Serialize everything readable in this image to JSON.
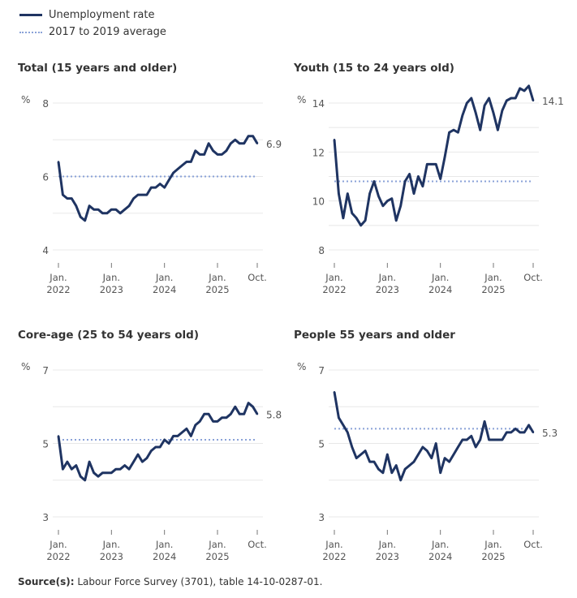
{
  "legend": {
    "series_label": "Unemployment rate",
    "average_label": "2017 to 2019 average"
  },
  "colors": {
    "series": "#1f3462",
    "average": "#8aa2d8",
    "grid": "#e8e8e8",
    "text": "#555555"
  },
  "source": {
    "label": "Source(s):",
    "text": "Labour Force Survey (3701), table 14-10-0287-01."
  },
  "chart_data": [
    {
      "type": "line",
      "title": "Total (15 years and older)",
      "ylabel": "%",
      "ylim": [
        4,
        8
      ],
      "yticks": [
        4,
        6,
        8
      ],
      "ygrid": [
        4,
        5,
        6,
        7,
        8
      ],
      "xticks": [
        {
          "label": [
            "Jan.",
            "2022"
          ],
          "index": 0
        },
        {
          "label": [
            "Jan.",
            "2023"
          ],
          "index": 12
        },
        {
          "label": [
            "Jan.",
            "2024"
          ],
          "index": 24
        },
        {
          "label": [
            "Jan.",
            "2025"
          ],
          "index": 36
        },
        {
          "label": [
            "Oct.",
            ""
          ],
          "index": 45
        }
      ],
      "x_start": "Jan. 2022",
      "x_end": "Oct. 2025",
      "average": 6.0,
      "end_label": "6.9",
      "values": [
        6.4,
        5.5,
        5.4,
        5.4,
        5.2,
        4.9,
        4.8,
        5.2,
        5.1,
        5.1,
        5.0,
        5.0,
        5.1,
        5.1,
        5.0,
        5.1,
        5.2,
        5.4,
        5.5,
        5.5,
        5.5,
        5.7,
        5.7,
        5.8,
        5.7,
        5.9,
        6.1,
        6.2,
        6.3,
        6.4,
        6.4,
        6.7,
        6.6,
        6.6,
        6.9,
        6.7,
        6.6,
        6.6,
        6.7,
        6.9,
        7.0,
        6.9,
        6.9,
        7.1,
        7.1,
        6.9
      ]
    },
    {
      "type": "line",
      "title": "Youth (15 to 24 years old)",
      "ylabel": "%",
      "ylim": [
        8,
        14
      ],
      "yticks": [
        8,
        10,
        12,
        14
      ],
      "ygrid": [
        8,
        9,
        10,
        11,
        12,
        13,
        14
      ],
      "xticks": [
        {
          "label": [
            "Jan.",
            "2022"
          ],
          "index": 0
        },
        {
          "label": [
            "Jan.",
            "2023"
          ],
          "index": 12
        },
        {
          "label": [
            "Jan.",
            "2024"
          ],
          "index": 24
        },
        {
          "label": [
            "Jan.",
            "2025"
          ],
          "index": 36
        },
        {
          "label": [
            "Oct.",
            ""
          ],
          "index": 45
        }
      ],
      "x_start": "Jan. 2022",
      "x_end": "Oct. 2025",
      "average": 10.8,
      "end_label": "14.1",
      "values": [
        12.5,
        10.3,
        9.3,
        10.3,
        9.5,
        9.3,
        9.0,
        9.2,
        10.3,
        10.8,
        10.2,
        9.8,
        10.0,
        10.1,
        9.2,
        9.8,
        10.8,
        11.1,
        10.3,
        11.0,
        10.6,
        11.5,
        11.5,
        11.5,
        10.9,
        11.8,
        12.8,
        12.9,
        12.8,
        13.5,
        14.0,
        14.2,
        13.6,
        12.9,
        13.9,
        14.2,
        13.6,
        12.9,
        13.7,
        14.1,
        14.2,
        14.2,
        14.6,
        14.5,
        14.7,
        14.1
      ]
    },
    {
      "type": "line",
      "title": "Core-age (25 to 54 years old)",
      "ylabel": "%",
      "ylim": [
        3,
        7
      ],
      "yticks": [
        3,
        5,
        7
      ],
      "ygrid": [
        3,
        4,
        5,
        6,
        7
      ],
      "xticks": [
        {
          "label": [
            "Jan.",
            "2022"
          ],
          "index": 0
        },
        {
          "label": [
            "Jan.",
            "2023"
          ],
          "index": 12
        },
        {
          "label": [
            "Jan.",
            "2024"
          ],
          "index": 24
        },
        {
          "label": [
            "Jan.",
            "2025"
          ],
          "index": 36
        },
        {
          "label": [
            "Oct.",
            ""
          ],
          "index": 45
        }
      ],
      "x_start": "Jan. 2022",
      "x_end": "Oct. 2025",
      "average": 5.1,
      "end_label": "5.8",
      "values": [
        5.2,
        4.3,
        4.5,
        4.3,
        4.4,
        4.1,
        4.0,
        4.5,
        4.2,
        4.1,
        4.2,
        4.2,
        4.2,
        4.3,
        4.3,
        4.4,
        4.3,
        4.5,
        4.7,
        4.5,
        4.6,
        4.8,
        4.9,
        4.9,
        5.1,
        5.0,
        5.2,
        5.2,
        5.3,
        5.4,
        5.2,
        5.5,
        5.6,
        5.8,
        5.8,
        5.6,
        5.6,
        5.7,
        5.7,
        5.8,
        6.0,
        5.8,
        5.8,
        6.1,
        6.0,
        5.8
      ]
    },
    {
      "type": "line",
      "title": "People 55 years and older",
      "ylabel": "%",
      "ylim": [
        3,
        7
      ],
      "yticks": [
        3,
        5,
        7
      ],
      "ygrid": [
        3,
        4,
        5,
        6,
        7
      ],
      "xticks": [
        {
          "label": [
            "Jan.",
            "2022"
          ],
          "index": 0
        },
        {
          "label": [
            "Jan.",
            "2023"
          ],
          "index": 12
        },
        {
          "label": [
            "Jan.",
            "2024"
          ],
          "index": 24
        },
        {
          "label": [
            "Jan.",
            "2025"
          ],
          "index": 36
        },
        {
          "label": [
            "Oct.",
            ""
          ],
          "index": 45
        }
      ],
      "x_start": "Jan. 2022",
      "x_end": "Oct. 2025",
      "average": 5.4,
      "end_label": "5.3",
      "values": [
        6.4,
        5.7,
        5.5,
        5.3,
        4.9,
        4.6,
        4.7,
        4.8,
        4.5,
        4.5,
        4.3,
        4.2,
        4.7,
        4.2,
        4.4,
        4.0,
        4.3,
        4.4,
        4.5,
        4.7,
        4.9,
        4.8,
        4.6,
        5.0,
        4.2,
        4.6,
        4.5,
        4.7,
        4.9,
        5.1,
        5.1,
        5.2,
        4.9,
        5.1,
        5.6,
        5.1,
        5.1,
        5.1,
        5.1,
        5.3,
        5.3,
        5.4,
        5.3,
        5.3,
        5.5,
        5.3
      ]
    }
  ]
}
